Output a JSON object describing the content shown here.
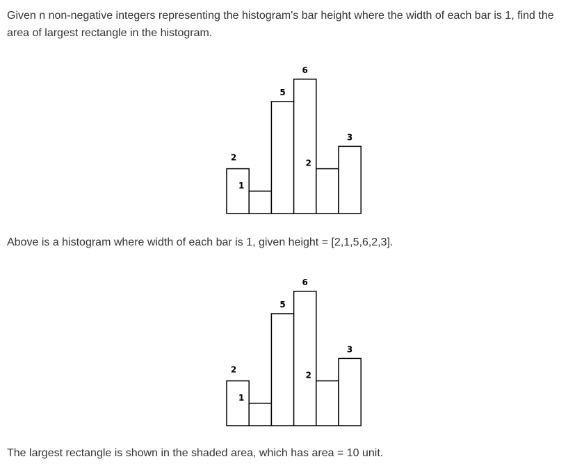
{
  "text": {
    "intro": "Given n non-negative integers representing the histogram's bar height where the width of each bar is 1, find the area of largest rectangle in the histogram.",
    "caption": "Above is a histogram where width of each bar is 1, given height = [2,1,5,6,2,3].",
    "conclusion": "The largest rectangle is shown in the shaded area, which has area = 10 unit."
  },
  "histogram": {
    "heights": [
      2,
      1,
      5,
      6,
      2,
      3
    ],
    "labels": [
      "2",
      "1",
      "5",
      "6",
      "2",
      "3"
    ]
  },
  "highlight": {
    "start_index": 2,
    "end_index": 3,
    "height": 5,
    "color": "#ff8800"
  },
  "colors": {
    "text": "#333333",
    "bar_stroke": "#000000",
    "bar_fill": "#ffffff",
    "hatch": "#ff8800"
  }
}
